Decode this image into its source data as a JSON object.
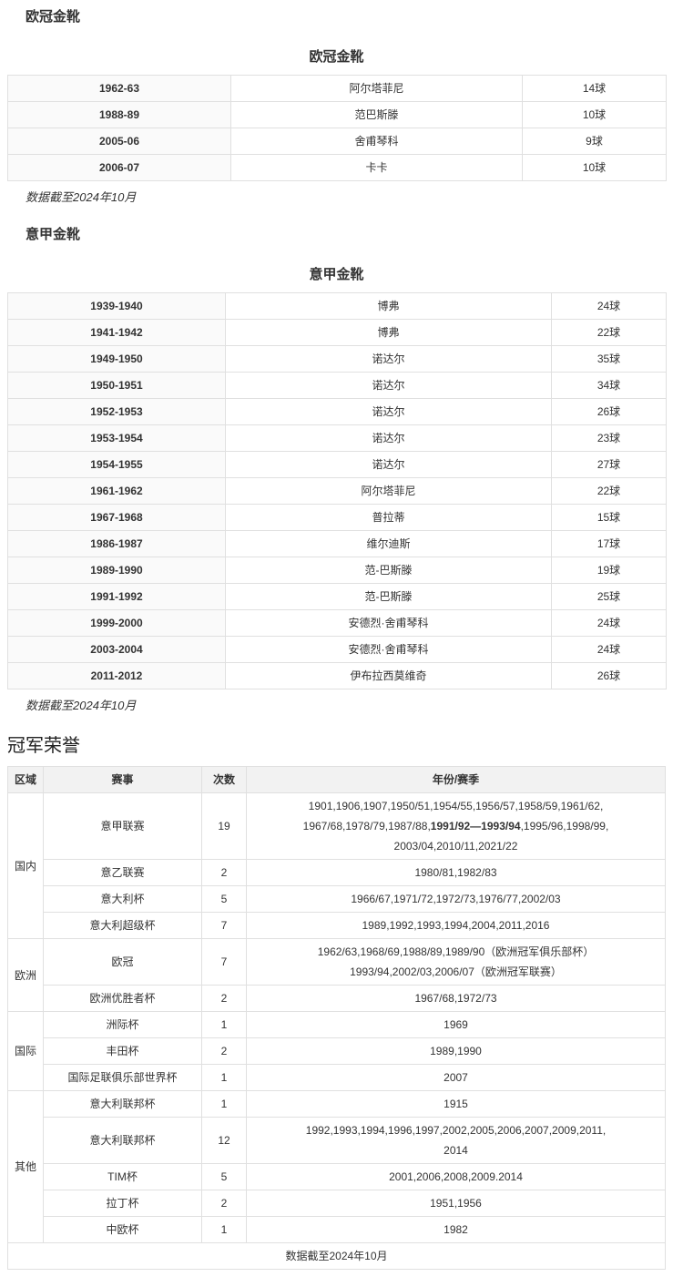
{
  "colors": {
    "text": "#333333",
    "border": "#e0e0e0",
    "col1_bg": "#fafafa",
    "header_bg": "#f2f2f2"
  },
  "cl": {
    "heading": "欧冠金靴",
    "caption": "欧冠金靴",
    "rows": [
      [
        "1962-63",
        "阿尔塔菲尼",
        "14球"
      ],
      [
        "1988-89",
        "范巴斯滕",
        "10球"
      ],
      [
        "2005-06",
        "舍甫琴科",
        "9球"
      ],
      [
        "2006-07",
        "卡卡",
        "10球"
      ]
    ],
    "note": "数据截至2024年10月"
  },
  "seriea": {
    "heading": "意甲金靴",
    "caption": "意甲金靴",
    "rows": [
      [
        "1939-1940",
        "博弗",
        "24球"
      ],
      [
        "1941-1942",
        "博弗",
        "22球"
      ],
      [
        "1949-1950",
        "诺达尔",
        "35球"
      ],
      [
        "1950-1951",
        "诺达尔",
        "34球"
      ],
      [
        "1952-1953",
        "诺达尔",
        "26球"
      ],
      [
        "1953-1954",
        "诺达尔",
        "23球"
      ],
      [
        "1954-1955",
        "诺达尔",
        "27球"
      ],
      [
        "1961-1962",
        "阿尔塔菲尼",
        "22球"
      ],
      [
        "1967-1968",
        "普拉蒂",
        "15球"
      ],
      [
        "1986-1987",
        "维尔迪斯",
        "17球"
      ],
      [
        "1989-1990",
        "范-巴斯滕",
        "19球"
      ],
      [
        "1991-1992",
        "范-巴斯滕",
        "25球"
      ],
      [
        "1999-2000",
        "安德烈·舍甫琴科",
        "24球"
      ],
      [
        "2003-2004",
        "安德烈·舍甫琴科",
        "24球"
      ],
      [
        "2011-2012",
        "伊布拉西莫维奇",
        "26球"
      ]
    ],
    "note": "数据截至2024年10月"
  },
  "honors": {
    "heading": "冠军荣誉",
    "columns": [
      "区域",
      "赛事",
      "次数",
      "年份/赛季"
    ],
    "rows": [
      {
        "region": "国内",
        "region_rowspan": 4,
        "competition": "意甲联赛",
        "count": "19",
        "years": [
          [
            {
              "t": "1901,1906,1907,1950/51,1954/55,1956/57,1958/59,1961/62,"
            }
          ],
          [
            {
              "t": "1967/68,1978/79,1987/88,"
            },
            {
              "t": "1991/92—1993/94",
              "b": true
            },
            {
              "t": ",1995/96,1998/99,"
            }
          ],
          [
            {
              "t": "2003/04,2010/11,2021/22"
            }
          ]
        ]
      },
      {
        "competition": "意乙联赛",
        "count": "2",
        "years": [
          [
            {
              "t": "1980/81,1982/83"
            }
          ]
        ]
      },
      {
        "competition": "意大利杯",
        "count": "5",
        "years": [
          [
            {
              "t": "1966/67,1971/72,1972/73,1976/77,2002/03"
            }
          ]
        ]
      },
      {
        "competition": "意大利超级杯",
        "count": "7",
        "years": [
          [
            {
              "t": "1989,1992,1993,1994,2004,2011,2016"
            }
          ]
        ]
      },
      {
        "region": "欧洲",
        "region_rowspan": 2,
        "competition": "欧冠",
        "count": "7",
        "years": [
          [
            {
              "t": "1962/63,1968/69,1988/89,1989/90（欧洲冠军俱乐部杯）"
            }
          ],
          [
            {
              "t": "1993/94,2002/03,2006/07（欧洲冠军联赛）"
            }
          ]
        ]
      },
      {
        "competition": "欧洲优胜者杯",
        "count": "2",
        "years": [
          [
            {
              "t": "1967/68,1972/73"
            }
          ]
        ]
      },
      {
        "region": "国际",
        "region_rowspan": 3,
        "competition": "洲际杯",
        "count": "1",
        "years": [
          [
            {
              "t": "1969"
            }
          ]
        ]
      },
      {
        "competition": "丰田杯",
        "count": "2",
        "years": [
          [
            {
              "t": "1989,1990"
            }
          ]
        ]
      },
      {
        "competition": "国际足联俱乐部世界杯",
        "count": "1",
        "years": [
          [
            {
              "t": "2007"
            }
          ]
        ]
      },
      {
        "region": "其他",
        "region_rowspan": 5,
        "competition": "意大利联邦杯",
        "count": "1",
        "years": [
          [
            {
              "t": "1915"
            }
          ]
        ]
      },
      {
        "competition": "意大利联邦杯",
        "count": "12",
        "years": [
          [
            {
              "t": "1992,1993,1994,1996,1997,2002,2005,2006,2007,2009,2011,"
            }
          ],
          [
            {
              "t": "2014"
            }
          ]
        ]
      },
      {
        "competition": "TIM杯",
        "count": "5",
        "years": [
          [
            {
              "t": "2001,2006,2008,2009.2014"
            }
          ]
        ]
      },
      {
        "competition": "拉丁杯",
        "count": "2",
        "years": [
          [
            {
              "t": "1951,1956"
            }
          ]
        ]
      },
      {
        "competition": "中欧杯",
        "count": "1",
        "years": [
          [
            {
              "t": "1982"
            }
          ]
        ]
      }
    ],
    "footer": "数据截至2024年10月"
  }
}
